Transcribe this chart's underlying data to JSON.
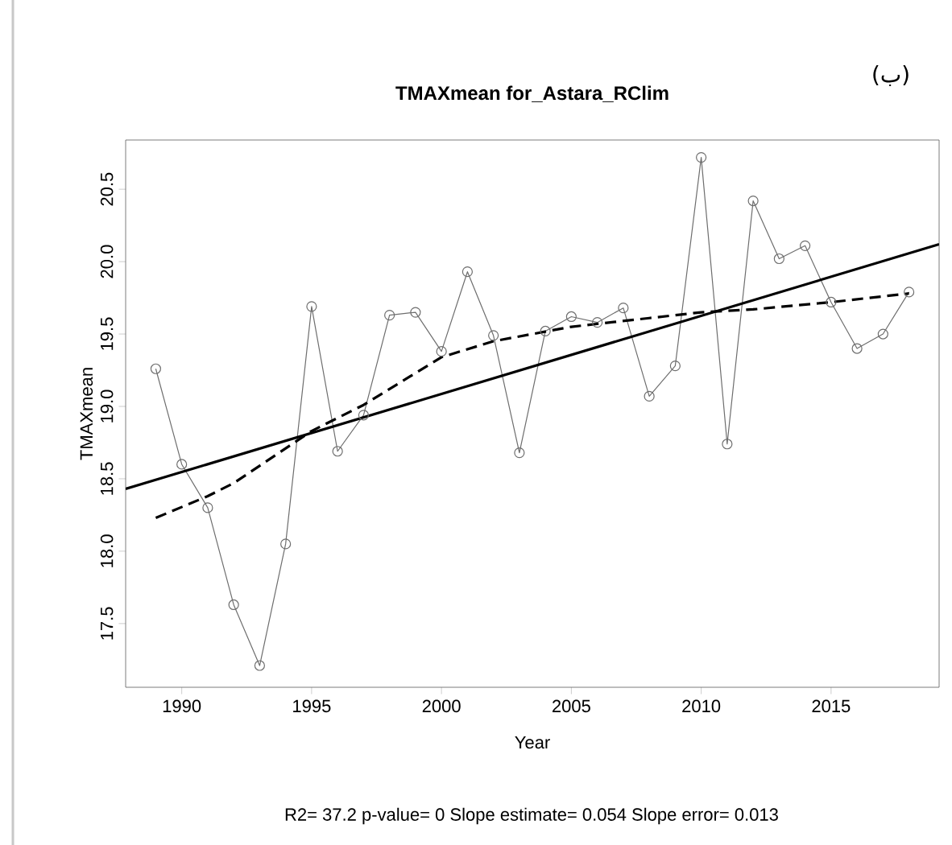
{
  "chart_data": {
    "type": "line",
    "title": "TMAXmean   for_Astara_RClim",
    "xlabel": "Year",
    "ylabel": "TMAXmean",
    "annotations": [
      "R2= 37.2  p-value= 0  Slope estimate= 0.054  Slope error= 0.013",
      "(ب)"
    ],
    "xlim": [
      1987.84,
      2019.16
    ],
    "ylim": [
      17.06,
      20.84
    ],
    "xticks": [
      1990,
      1995,
      2000,
      2005,
      2010,
      2015
    ],
    "yticks": [
      17.5,
      {
        "value": 18,
        "label": "18.0"
      },
      18.5,
      {
        "value": 19,
        "label": "19.0"
      },
      19.5,
      {
        "value": 20,
        "label": "20.0"
      },
      20.5
    ],
    "grid": false,
    "series": [
      {
        "color": "#6e6e6e",
        "marker": "circle",
        "line_style": "solid",
        "x": [
          1989,
          1990,
          1991,
          1992,
          1993,
          1994,
          1995,
          1996,
          1997,
          1998,
          1999,
          2000,
          2001,
          2002,
          2003,
          2004,
          2005,
          2006,
          2007,
          2008,
          2009,
          2010,
          2011,
          2012,
          2013,
          2014,
          2015,
          2016,
          2017,
          2018
        ],
        "values": [
          19.26,
          18.6,
          18.3,
          17.63,
          17.21,
          18.05,
          19.69,
          18.69,
          18.94,
          19.63,
          19.65,
          19.38,
          19.93,
          19.49,
          18.68,
          19.52,
          19.62,
          19.58,
          19.68,
          19.07,
          19.28,
          20.72,
          18.74,
          20.42,
          20.02,
          20.11,
          19.72,
          19.4,
          19.5,
          19.79
        ]
      },
      {
        "color": "#000000",
        "marker": "none",
        "line_style": "solid",
        "x": [
          1987.84,
          2019.16
        ],
        "values": [
          18.43,
          20.12
        ]
      },
      {
        "color": "#000000",
        "marker": "none",
        "line_style": "dashed",
        "x": [
          1989,
          1991,
          1992,
          1995,
          1997,
          2000,
          2002,
          2005,
          2008,
          2010,
          2012,
          2015,
          2018
        ],
        "values": [
          18.23,
          18.38,
          18.47,
          18.83,
          19.01,
          19.34,
          19.45,
          19.55,
          19.61,
          19.65,
          19.67,
          19.72,
          19.78
        ]
      }
    ]
  }
}
